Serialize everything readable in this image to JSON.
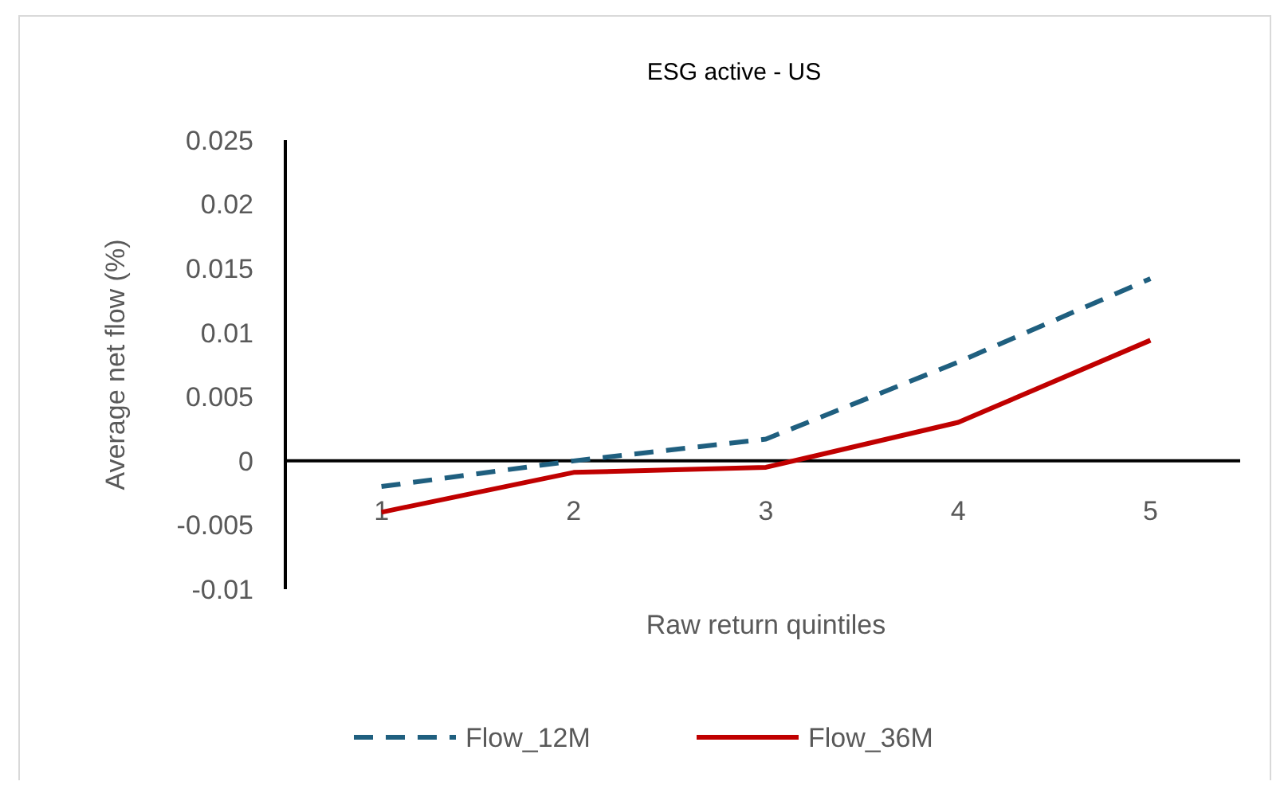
{
  "chart_data": {
    "type": "line",
    "title": "ESG active - US",
    "xlabel": "Raw return quintiles",
    "ylabel": "Average net  flow (%)",
    "categories": [
      "1",
      "2",
      "3",
      "4",
      "5"
    ],
    "series": [
      {
        "name": "Flow_12M",
        "color": "#1f5f7f",
        "line_style": "dashed",
        "values": [
          -0.002,
          0.0,
          0.0017,
          0.0077,
          0.0142
        ]
      },
      {
        "name": "Flow_36M",
        "color": "#c00000",
        "line_style": "solid",
        "values": [
          -0.004,
          -0.0009,
          -0.0005,
          0.003,
          0.0094
        ]
      }
    ],
    "ylim": [
      -0.01,
      0.025
    ],
    "yticks": [
      -0.01,
      -0.005,
      0,
      0.005,
      0.01,
      0.015,
      0.02,
      0.025
    ],
    "grid": false,
    "legend": "bottom"
  }
}
